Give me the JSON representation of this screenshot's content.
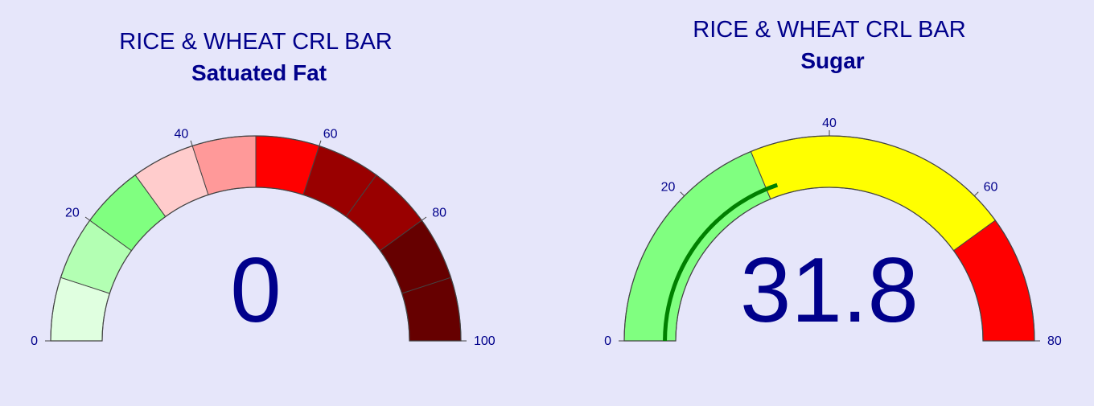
{
  "chart_data": [
    {
      "type": "gauge",
      "title": "RICE & WHEAT CRL BAR",
      "subtitle": "Satuated Fat",
      "value": 0,
      "value_label": "0",
      "range": [
        0,
        100
      ],
      "ticks": [
        {
          "value": 0,
          "label": "0"
        },
        {
          "value": 20,
          "label": "20"
        },
        {
          "value": 40,
          "label": "40"
        },
        {
          "value": 60,
          "label": "60"
        },
        {
          "value": 80,
          "label": "80"
        },
        {
          "value": 100,
          "label": "100"
        }
      ],
      "bar_color": "",
      "steps": [
        {
          "from": 0,
          "to": 10,
          "color": "#e0ffe0"
        },
        {
          "from": 10,
          "to": 20,
          "color": "#b3ffb3"
        },
        {
          "from": 20,
          "to": 30,
          "color": "#80ff80"
        },
        {
          "from": 30,
          "to": 40,
          "color": "#ffcccc"
        },
        {
          "from": 40,
          "to": 50,
          "color": "#ff9999"
        },
        {
          "from": 50,
          "to": 60,
          "color": "#ff0000"
        },
        {
          "from": 60,
          "to": 70,
          "color": "#990000"
        },
        {
          "from": 70,
          "to": 80,
          "color": "#990000"
        },
        {
          "from": 80,
          "to": 90,
          "color": "#660000"
        },
        {
          "from": 90,
          "to": 100,
          "color": "#660000"
        }
      ]
    },
    {
      "type": "gauge",
      "title": "RICE & WHEAT CRL BAR",
      "subtitle": "Sugar",
      "value": 31.8,
      "value_label": "31.8",
      "range": [
        0,
        80
      ],
      "ticks": [
        {
          "value": 0,
          "label": "0"
        },
        {
          "value": 20,
          "label": "20"
        },
        {
          "value": 40,
          "label": "40"
        },
        {
          "value": 60,
          "label": "60"
        },
        {
          "value": 80,
          "label": "80"
        }
      ],
      "bar_color": "#008000",
      "steps": [
        {
          "from": 0,
          "to": 30,
          "color": "#80ff80"
        },
        {
          "from": 30,
          "to": 64,
          "color": "#ffff00"
        },
        {
          "from": 64,
          "to": 80,
          "color": "#ff0000"
        }
      ]
    }
  ]
}
